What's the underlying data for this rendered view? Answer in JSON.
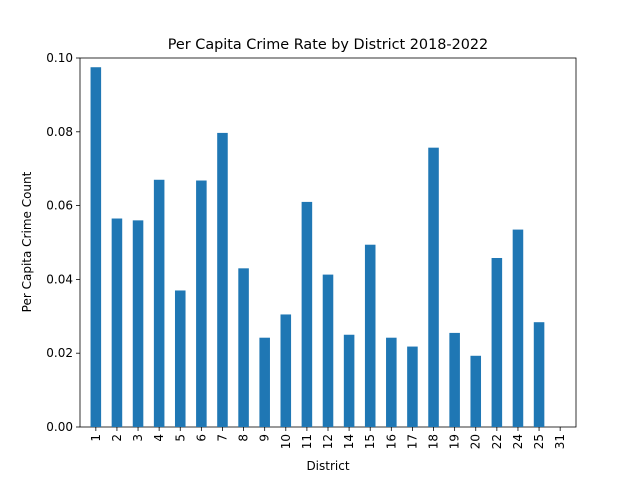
{
  "chart_data": {
    "type": "bar",
    "title": "Per Capita Crime Rate by District 2018-2022",
    "xlabel": "District",
    "ylabel": "Per Capita Crime Count",
    "categories": [
      "1",
      "2",
      "3",
      "4",
      "5",
      "6",
      "7",
      "8",
      "9",
      "10",
      "11",
      "12",
      "14",
      "15",
      "16",
      "17",
      "18",
      "19",
      "20",
      "22",
      "24",
      "25",
      "31"
    ],
    "values": [
      0.0975,
      0.0565,
      0.056,
      0.067,
      0.037,
      0.0668,
      0.0797,
      0.043,
      0.0242,
      0.0305,
      0.061,
      0.0413,
      0.025,
      0.0494,
      0.0242,
      0.0218,
      0.0757,
      0.0255,
      0.0193,
      0.0458,
      0.0535,
      0.0284,
      0.0
    ],
    "ylim": [
      0,
      0.1
    ],
    "yticks": [
      0.0,
      0.02,
      0.04,
      0.06,
      0.08,
      0.1
    ],
    "ytick_labels": [
      "0.00",
      "0.02",
      "0.04",
      "0.06",
      "0.08",
      "0.10"
    ],
    "bar_color": "#1f77b4",
    "grid": false,
    "legend": "none"
  }
}
